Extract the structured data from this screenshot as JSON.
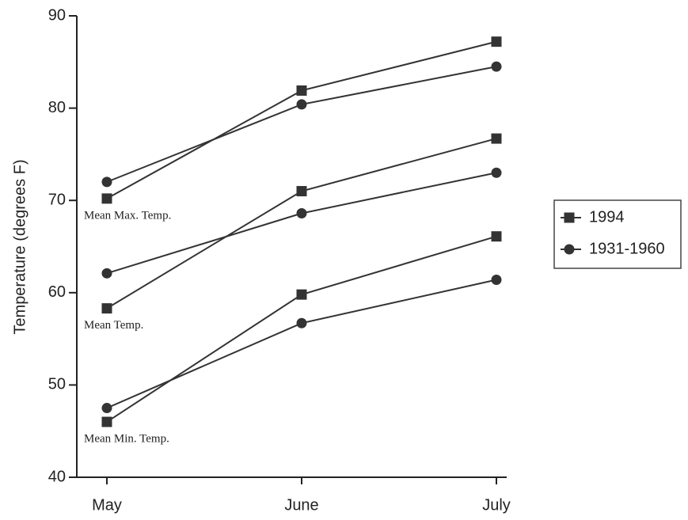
{
  "chart_data": {
    "type": "line",
    "ylabel": "Temperature (degrees F)",
    "categories": [
      "May",
      "June",
      "July"
    ],
    "ylim": [
      40,
      90
    ],
    "yticks": [
      40,
      50,
      60,
      70,
      80,
      90
    ],
    "color": "#333333",
    "legend": "right",
    "series": [
      {
        "name": "1994",
        "marker": "square",
        "lines": [
          [
            70.2,
            81.9,
            87.2
          ],
          [
            58.3,
            71.0,
            76.7
          ],
          [
            46.0,
            59.8,
            66.1
          ]
        ]
      },
      {
        "name": "1931-1960",
        "marker": "circle",
        "lines": [
          [
            72.0,
            80.4,
            84.5
          ],
          [
            62.1,
            68.6,
            73.0
          ],
          [
            47.5,
            56.7,
            61.4
          ]
        ]
      }
    ],
    "annotations": [
      "Mean Max. Temp.",
      "Mean Temp.",
      "Mean Min. Temp."
    ]
  }
}
